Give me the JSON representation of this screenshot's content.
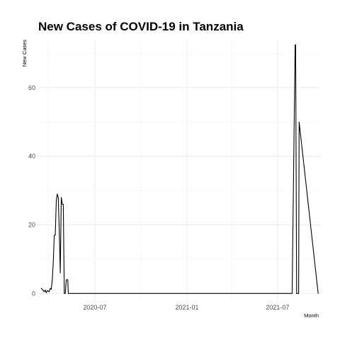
{
  "chart_data": {
    "type": "line",
    "title": "New Cases of COVID-19 in Tanzania",
    "xlabel": "Month",
    "ylabel": "New Cases",
    "x_axis_type": "date",
    "xlim": [
      "2020-03-10",
      "2021-09-24"
    ],
    "ylim": [
      -2,
      74
    ],
    "x_ticks": [
      "2020-07-01",
      "2021-01-01",
      "2021-07-01"
    ],
    "x_tick_labels": [
      "2020-07",
      "2021-01",
      "2021-07"
    ],
    "y_ticks": [
      0,
      20,
      40,
      60
    ],
    "y_tick_labels": [
      "0",
      "20",
      "40",
      "60"
    ],
    "grid": true,
    "legend": "none",
    "line_color": "#000000",
    "series": [
      {
        "x": [
          "2020-03-16",
          "2020-03-18",
          "2020-03-20",
          "2020-03-22",
          "2020-03-24",
          "2020-03-26",
          "2020-03-28",
          "2020-03-30",
          "2020-04-01",
          "2020-04-03",
          "2020-04-05",
          "2020-04-07",
          "2020-04-09",
          "2020-04-11",
          "2020-04-13",
          "2020-04-15",
          "2020-04-17",
          "2020-04-19",
          "2020-04-21",
          "2020-04-23",
          "2020-04-25",
          "2020-04-27",
          "2020-04-28",
          "2020-04-29",
          "2020-05-01",
          "2020-05-03",
          "2020-05-05",
          "2020-05-07",
          "2020-05-08",
          "2020-05-09",
          "2020-05-10",
          "2020-05-11",
          "2020-05-12",
          "2020-05-13",
          "2020-05-14",
          "2020-05-15",
          "2020-05-20",
          "2021-07-30",
          "2021-08-05",
          "2021-08-06",
          "2021-08-08",
          "2021-08-12",
          "2021-08-13",
          "2021-09-20"
        ],
        "y": [
          1.5,
          1.2,
          0.8,
          0.5,
          1.0,
          0.2,
          0.8,
          0.7,
          0.5,
          1.5,
          1.2,
          4,
          9,
          17,
          17,
          27,
          29,
          28,
          18,
          6,
          28,
          26,
          26,
          26,
          0,
          0,
          4,
          4,
          4,
          0,
          0,
          0,
          0,
          0,
          0,
          0,
          0,
          0,
          72.5,
          72.5,
          0,
          0,
          50,
          0
        ]
      }
    ]
  }
}
